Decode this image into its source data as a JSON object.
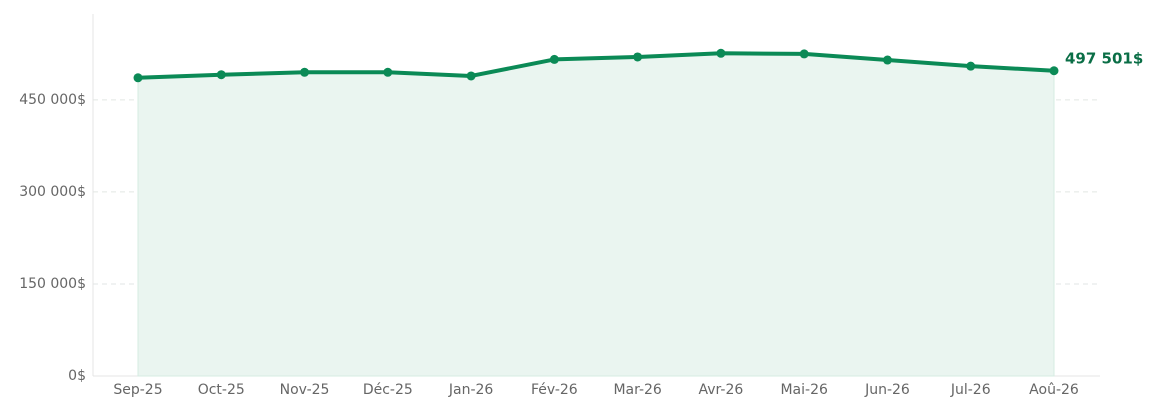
{
  "chart_data": {
    "type": "line",
    "categories": [
      "Sep-25",
      "Oct-25",
      "Nov-25",
      "Déc-25",
      "Jan-26",
      "Fév-26",
      "Mar-26",
      "Avr-26",
      "Mai-26",
      "Jun-26",
      "Jul-26",
      "Aoû-26"
    ],
    "series": [
      {
        "color": "#0b8a56",
        "fill": "#eaf5f0",
        "values": [
          486000,
          491000,
          495000,
          495000,
          489000,
          516000,
          520000,
          526000,
          525000,
          515000,
          505000,
          497501
        ],
        "value_labels": [
          null,
          null,
          null,
          null,
          null,
          null,
          null,
          null,
          null,
          null,
          null,
          "497 501$"
        ]
      }
    ],
    "ylim": [
      0,
      590000
    ],
    "yticks": [
      {
        "value": 0,
        "label": "0$"
      },
      {
        "value": 150000,
        "label": "150 000$"
      },
      {
        "value": 300000,
        "label": "300 000$"
      },
      {
        "value": 450000,
        "label": "450 000$"
      }
    ],
    "grid": true
  }
}
